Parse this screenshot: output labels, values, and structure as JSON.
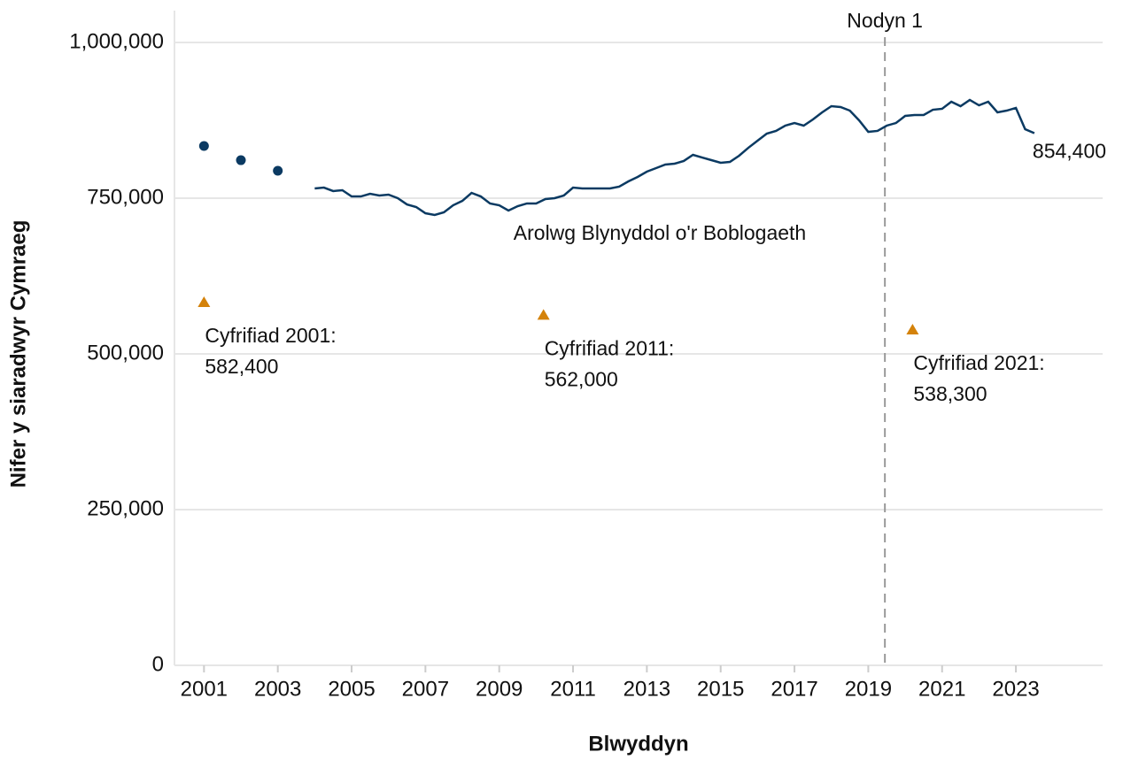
{
  "chart_data": {
    "type": "line",
    "xlabel": "Blwyddyn",
    "ylabel": "Nifer y siaradwyr Cymraeg",
    "xlim": [
      2000.2,
      2025.35
    ],
    "xticks": [
      2001,
      2003,
      2005,
      2007,
      2009,
      2011,
      2013,
      2015,
      2017,
      2019,
      2021,
      2023
    ],
    "ylim": [
      0,
      1000000
    ],
    "yticks": [
      0,
      {
        "value": 250000,
        "label": "250,000"
      },
      {
        "value": 500000,
        "label": "500,000"
      },
      {
        "value": 750000,
        "label": "750,000"
      },
      {
        "value": 1000000,
        "label": "1,000,000"
      }
    ],
    "grid": true,
    "vline": {
      "x": 2019.45,
      "label": "Nodyn 1"
    },
    "series": [
      {
        "type": "scatter",
        "color": "#0b3a62",
        "x": [
          2001,
          2002,
          2003
        ],
        "values": [
          833800,
          811000,
          794000
        ]
      },
      {
        "type": "line",
        "name": "Arolwg Blynyddol o'r Boblogaeth",
        "color": "#0b3a62",
        "x": [
          2004,
          2004.25,
          2004.5,
          2004.75,
          2005,
          2005.25,
          2005.5,
          2005.75,
          2006,
          2006.25,
          2006.5,
          2006.75,
          2007,
          2007.25,
          2007.5,
          2007.75,
          2008,
          2008.25,
          2008.5,
          2008.75,
          2009,
          2009.25,
          2009.5,
          2009.75,
          2010,
          2010.25,
          2010.5,
          2010.75,
          2011,
          2011.25,
          2011.5,
          2011.75,
          2012,
          2012.25,
          2012.5,
          2012.75,
          2013,
          2013.25,
          2013.5,
          2013.75,
          2014,
          2014.25,
          2014.5,
          2014.75,
          2015,
          2015.25,
          2015.5,
          2015.75,
          2016,
          2016.25,
          2016.5,
          2016.75,
          2017,
          2017.25,
          2017.5,
          2017.75,
          2018,
          2018.25,
          2018.5,
          2018.75,
          2019,
          2019.25,
          2019.5,
          2019.75,
          2020,
          2020.25,
          2020.5,
          2020.75,
          2021,
          2021.25,
          2021.5,
          2021.75,
          2022,
          2022.25,
          2022.5,
          2022.75,
          2023,
          2023.25,
          2023.5
        ],
        "values": [
          765600,
          767000,
          761400,
          762800,
          752800,
          752800,
          757100,
          754300,
          755700,
          750000,
          740000,
          735800,
          725800,
          723000,
          727300,
          738600,
          745700,
          758500,
          752800,
          741500,
          738600,
          730100,
          737200,
          741500,
          741500,
          748600,
          750000,
          754300,
          767000,
          765600,
          765600,
          765600,
          765600,
          768500,
          777000,
          784100,
          792600,
          798300,
          804000,
          805400,
          809700,
          819600,
          815300,
          811100,
          806800,
          808200,
          818200,
          830900,
          842300,
          853600,
          858000,
          866500,
          870700,
          866500,
          876400,
          887800,
          897700,
          896300,
          890600,
          875000,
          856500,
          858000,
          866500,
          870700,
          882100,
          883500,
          883500,
          892000,
          893500,
          904800,
          897700,
          907700,
          899100,
          904800,
          887800,
          890600,
          894900,
          860800,
          854400
        ],
        "last_value_label": "854,400"
      },
      {
        "type": "triangle",
        "color": "#d4820a",
        "x": [
          2001,
          2010.2,
          2020.2
        ],
        "values": [
          582400,
          562000,
          538300
        ],
        "labels": [
          "Cyfrifiad 2001:",
          "Cyfrifiad 2011:",
          "Cyfrifiad 2021:"
        ],
        "value_labels": [
          "582,400",
          "562,000",
          "538,300"
        ]
      }
    ]
  }
}
